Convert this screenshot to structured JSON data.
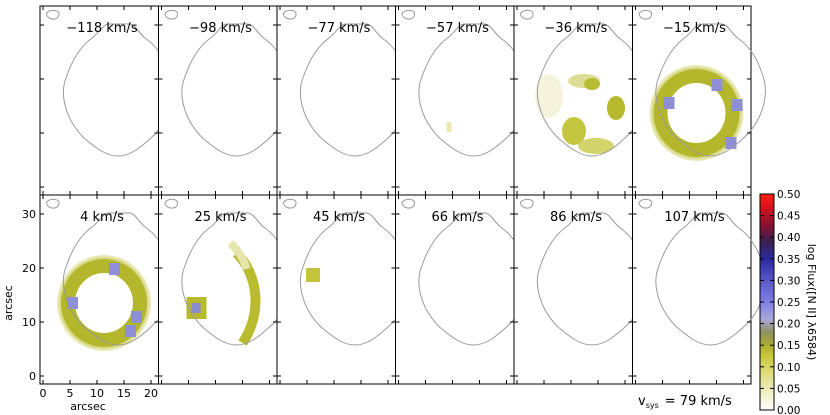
{
  "figure": {
    "velocity_labels": [
      "−118 km/s",
      "−98 km/s",
      "−77 km/s",
      "−57 km/s",
      "−36 km/s",
      "−15 km/s",
      "4 km/s",
      "25 km/s",
      "45 km/s",
      "66 km/s",
      "86 km/s",
      "107 km/s"
    ],
    "x_axis_label": "arcsec",
    "y_axis_label": "arcsec",
    "x_ticks": [
      "0",
      "5",
      "10",
      "15",
      "20"
    ],
    "y_ticks": [
      "0",
      "10",
      "20",
      "30"
    ],
    "colorbar": {
      "label": "log Flux([N II] λ6584)",
      "ticks": [
        "0.00",
        "0.05",
        "0.10",
        "0.15",
        "0.20",
        "0.25",
        "0.30",
        "0.35",
        "0.40",
        "0.45",
        "0.50"
      ],
      "range": [
        0.0,
        0.5
      ]
    },
    "systemic_velocity": {
      "symbol": "v",
      "subscript": "sys",
      "value_text": "= 79 km/s"
    }
  },
  "chart_data": {
    "type": "heatmap",
    "description_units": "channel maps; velocities in km/s, positions in arcsec, values in log flux",
    "channels_kms": [
      -118,
      -98,
      -77,
      -57,
      -36,
      -15,
      4,
      25,
      45,
      66,
      86,
      107
    ],
    "x_range_arcsec": [
      0,
      22
    ],
    "y_range_arcsec": [
      0,
      38
    ],
    "color_range": [
      0.0,
      0.5
    ],
    "emission_present": [
      false,
      false,
      false,
      true,
      true,
      true,
      true,
      true,
      true,
      false,
      false,
      false
    ]
  }
}
